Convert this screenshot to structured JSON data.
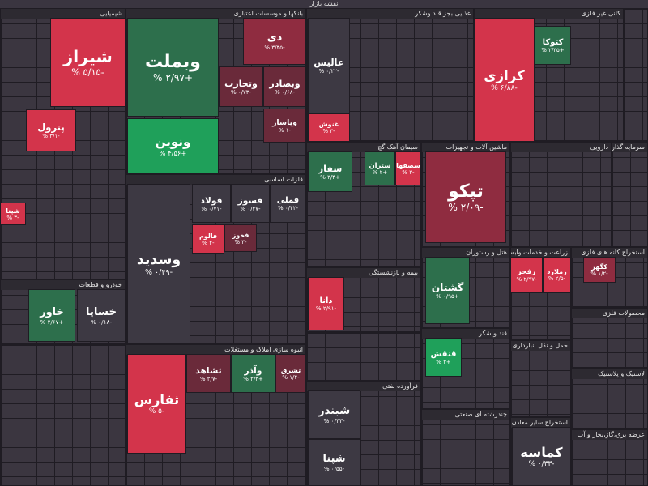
{
  "header": {
    "title": "نقشه بازار"
  },
  "sectors": [
    {
      "title": "شیمیایی",
      "tiles": [
        {
          "name": "شیراز",
          "change": "% ۵/۱۵-"
        },
        {
          "name": "پترول",
          "change": "% ۳/۱-"
        },
        {
          "name": "شپنا",
          "change": "% ۳-"
        }
      ]
    },
    {
      "title": "خودرو و قطعات",
      "tiles": [
        {
          "name": "خاور",
          "change": "% ۲/۶۷+"
        },
        {
          "name": "خساپا",
          "change": "% ۰/۱۸-"
        }
      ]
    },
    {
      "title": "بانکها و موسسات اعتباری",
      "tiles": [
        {
          "name": "وبملت",
          "change": "% ۲/۹۷+"
        },
        {
          "name": "ونوین",
          "change": "% ۴/۵۶+"
        },
        {
          "name": "دی",
          "change": "% ۳/۴۵-"
        },
        {
          "name": "وتجارت",
          "change": "% ۰/۷۳-"
        },
        {
          "name": "وبصادر",
          "change": "% ۰/۶۸-"
        },
        {
          "name": "وپاسار",
          "change": "% ۱-"
        }
      ]
    },
    {
      "title": "فلزات اساسی",
      "tiles": [
        {
          "name": "وسدید",
          "change": "% ۰/۴۹-"
        },
        {
          "name": "فولاد",
          "change": "% ۰/۷۱-"
        },
        {
          "name": "فسوز",
          "change": "% ۰/۴۷-"
        },
        {
          "name": "فملی",
          "change": "% ۰/۴۲-"
        },
        {
          "name": "فالوم",
          "change": "% ۲-"
        },
        {
          "name": "فخوز",
          "change": "% ۳-"
        }
      ]
    },
    {
      "title": "انبوه سازی املاک و مستغلات",
      "tiles": [
        {
          "name": "ثفارس",
          "change": "% ۵-"
        },
        {
          "name": "ثشاهد",
          "change": "% ۲/۷-"
        },
        {
          "name": "وآذر",
          "change": "% ۲/۳+"
        },
        {
          "name": "ثشرق",
          "change": "% ۱/۴-"
        }
      ]
    },
    {
      "title": "غذایی بجز قند وشکر",
      "tiles": [
        {
          "name": "عالیس",
          "change": "% ۰/۲۲-"
        },
        {
          "name": "غنوش",
          "change": "% ۳-"
        }
      ]
    },
    {
      "title": "سیمان آهک گچ",
      "tiles": [
        {
          "name": "سفار",
          "change": "% ۳/۴+"
        },
        {
          "name": "ستران",
          "change": "% ۲+"
        },
        {
          "name": "سصفها",
          "change": "% ۳-"
        }
      ]
    },
    {
      "title": "بیمه و بازنشستگی",
      "tiles": [
        {
          "name": "دانا",
          "change": "% ۲/۹۱-"
        }
      ]
    },
    {
      "title": "فرآورده نفتی",
      "tiles": [
        {
          "name": "شبندر",
          "change": "% ۰/۳۳-"
        },
        {
          "name": "شپنا",
          "change": "% ۰/۵۵-"
        }
      ]
    },
    {
      "title": "ماشین آلات و تجهیزات",
      "tiles": [
        {
          "name": "تپکو",
          "change": "% ۲/۰۹-"
        }
      ]
    },
    {
      "title": "هتل و رستوران",
      "tiles": [
        {
          "name": "گشتان",
          "change": "% ۰/۹۵+"
        }
      ]
    },
    {
      "title": "کانی غیر فلزی",
      "tiles": [
        {
          "name": "کرازی",
          "change": "% ۶/۸۸-"
        },
        {
          "name": "کتوکا",
          "change": "% ۲/۳۵+"
        }
      ]
    },
    {
      "title": "دارویی",
      "tiles": []
    },
    {
      "title": "زراعت و خدمات وابسته",
      "tiles": [
        {
          "name": "زفجر",
          "change": "% ۲/۹۷-"
        },
        {
          "name": "زملارد",
          "change": "% ۲/۵-"
        }
      ]
    },
    {
      "title": "قند و شکر",
      "tiles": [
        {
          "name": "قنقش",
          "change": "% ۳+"
        }
      ]
    },
    {
      "title": "حمل و نقل انبارداری",
      "tiles": []
    },
    {
      "title": "استخراج سایر معادن",
      "tiles": [
        {
          "name": "کماسه",
          "change": "% ۰/۳۳-"
        }
      ]
    },
    {
      "title": "استخراج کانه های فلزی",
      "tiles": [
        {
          "name": "کگهر",
          "change": "% ۱/۲-"
        }
      ]
    },
    {
      "title": "محصولات فلزی",
      "tiles": []
    },
    {
      "title": "لاستیک و پلاستیک",
      "tiles": []
    },
    {
      "title": "عرضه برق،گاز،بخار و آب",
      "tiles": []
    },
    {
      "title": "چندرشته ای صنعتی",
      "tiles": []
    },
    {
      "title": "سرمایه گذاری ها",
      "tiles": []
    }
  ]
}
